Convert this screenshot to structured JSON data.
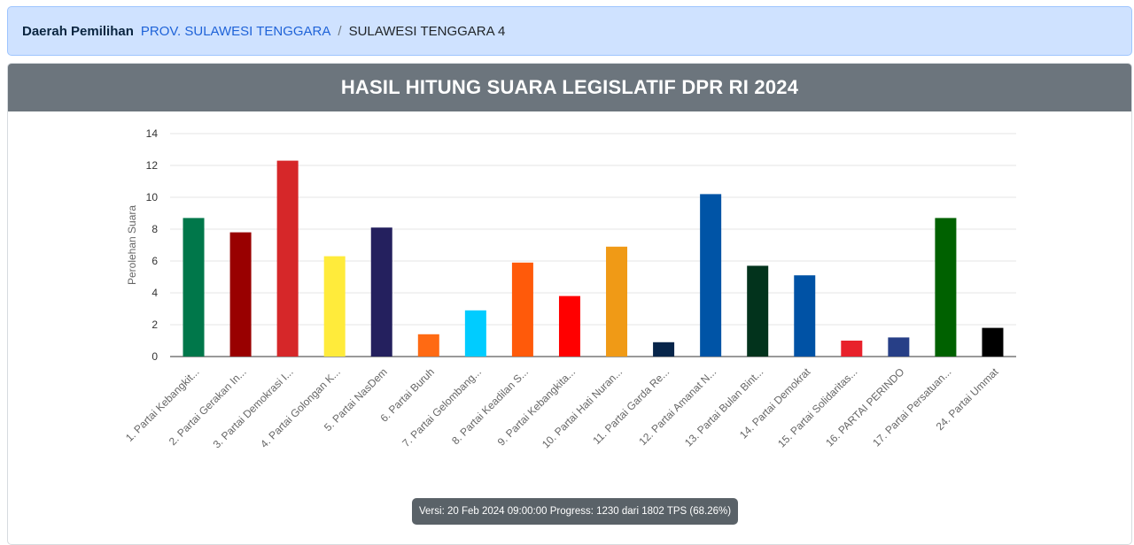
{
  "breadcrumb": {
    "label": "Daerah Pemilihan",
    "province": "PROV. SULAWESI TENGGARA",
    "separator": "/",
    "current": "SULAWESI TENGGARA 4"
  },
  "card": {
    "title": "HASIL HITUNG SUARA LEGISLATIF DPR RI 2024"
  },
  "status_badge": "Versi: 20 Feb 2024 09:00:00 Progress: 1230 dari 1802 TPS (68.26%)",
  "chart_data": {
    "type": "bar",
    "title": "",
    "xlabel": "",
    "ylabel": "Perolehan Suara",
    "ylim": [
      0,
      14
    ],
    "yticks": [
      0,
      2,
      4,
      6,
      8,
      10,
      12,
      14
    ],
    "grid": true,
    "categories": [
      "1. Partai Kebangkit...",
      "2. Partai Gerakan In...",
      "3. Partai Demokrasi I...",
      "4. Partai Golongan K...",
      "5. Partai NasDem",
      "6. Partai Buruh",
      "7. Partai Gelombang...",
      "8. Partai Keadilan S...",
      "9. Partai Kebangkita...",
      "10. Partai Hati Nuran...",
      "11. Partai Garda Re...",
      "12. Partai Amanat N...",
      "13. Partai Bulan Bint...",
      "14. Partai Demokrat",
      "15. Partai Solidaritas...",
      "16. PARTAI PERINDO",
      "17. Partai Persatuan...",
      "24. Partai Ummat"
    ],
    "values": [
      8.7,
      7.8,
      12.3,
      6.3,
      8.1,
      1.4,
      2.9,
      5.9,
      3.8,
      6.9,
      0.9,
      10.2,
      5.7,
      5.1,
      1.0,
      1.2,
      8.7,
      1.8
    ],
    "colors": [
      "#00774a",
      "#990000",
      "#d62729",
      "#ffeb3b",
      "#24205e",
      "#ff6a13",
      "#00ccff",
      "#ff5a0a",
      "#ff0000",
      "#f09a16",
      "#07254a",
      "#0054a6",
      "#02331c",
      "#0052a5",
      "#e8212b",
      "#273f87",
      "#006100",
      "#000000"
    ]
  }
}
